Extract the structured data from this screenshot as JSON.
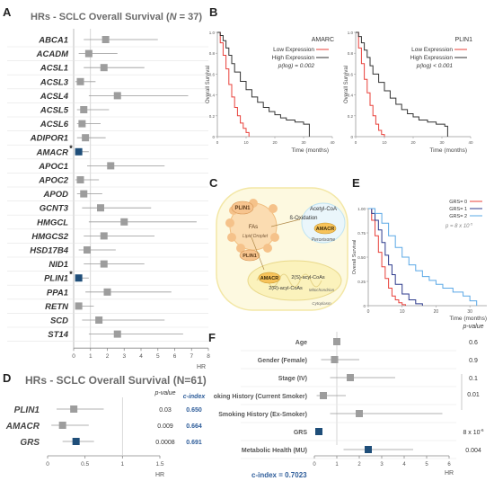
{
  "panels": {
    "A": {
      "letter": "A",
      "title_prefix": "HRs - SCLC Overall Survival (",
      "title_n": "N",
      "title_suffix": " = 37)",
      "genes": [
        "ABCA1",
        "ACADM",
        "ACSL1",
        "ACSL3",
        "ACSL4",
        "ACSL5",
        "ACSL6",
        "ADIPOR1",
        "AMACR",
        "APOC1",
        "APOC2",
        "APOD",
        "GCNT3",
        "HMGCL",
        "HMGCS2",
        "HSD17B4",
        "NID1",
        "PLIN1",
        "PPA1",
        "RETN",
        "SCD",
        "ST14"
      ],
      "significant_marker": "*",
      "axis_ticks": [
        "0",
        "1",
        "2",
        "3",
        "4",
        "5",
        "6",
        "7",
        "8"
      ],
      "xlabel": "HR"
    },
    "B": {
      "letter": "B",
      "ylabel": "Overall Survival",
      "xlabel": "Time (months)",
      "yticks": [
        "0",
        "0.2",
        "0.4",
        "0.6",
        "0.8",
        "1.0"
      ],
      "xticks": [
        "0",
        "10",
        "20",
        "30",
        "40"
      ],
      "plots": [
        {
          "gene": "AMARC",
          "low": "Low Expression",
          "high": "High Expression",
          "p": "p(log) = 0.002"
        },
        {
          "gene": "PLIN1",
          "low": "Low Expression",
          "high": "High Expression",
          "p": "p(log) < 0.001"
        }
      ]
    },
    "C": {
      "letter": "C",
      "labels": {
        "plin1_a": "PLIN1",
        "plin1_b": "PLIN1",
        "fas": "FAs",
        "lipid_droplet": "Lipid Droplet",
        "acetyl": "Acetyl-CoA",
        "beta_ox": "ß-Oxidation",
        "amacr_a": "AMACR",
        "amacr_b": "AMACR",
        "peroxisome": "Peroxisome",
        "s_acyl": "2(S)-acyl-CoAs",
        "r_acyl": "2(R)-acyl-CoAs",
        "mito": "Mitochondrion",
        "cyto": "Cytoplasm"
      }
    },
    "D": {
      "letter": "D",
      "title": "HRs - SCLC Overall Survival (N=61)",
      "pvalue_header": "p-value",
      "cindex_header": "c-index",
      "rows": [
        {
          "label": "PLIN1",
          "p": "0.03",
          "c": "0.650"
        },
        {
          "label": "AMACR",
          "p": "0.009",
          "c": "0.664"
        },
        {
          "label": "GRS",
          "p": "0.0008",
          "c": "0.691"
        }
      ],
      "axis_ticks": [
        "0",
        "0.5",
        "1",
        "1.5"
      ],
      "xlabel": "HR"
    },
    "E": {
      "letter": "E",
      "ylabel": "Overall Survival",
      "xlabel": "Time (months)",
      "legend": [
        "GRS= 0",
        "GRS= 1",
        "GRS= 2"
      ],
      "p": "p = 8 x 10",
      "p_exp": "-5",
      "yticks": [
        "0",
        "0.25",
        "0.50",
        "0.75",
        "1.00"
      ],
      "xticks": [
        "0",
        "10",
        "20",
        "30"
      ]
    },
    "F": {
      "letter": "F",
      "pvalue_header": "p-value",
      "rows": [
        {
          "label": "Age",
          "p": "0.6"
        },
        {
          "label": "Gender (Female)",
          "p": "0.9"
        },
        {
          "label": "Stage (IV)",
          "p": "0.1"
        },
        {
          "label": "Smoking History (Current Smoker)",
          "p": ""
        },
        {
          "label": "Smoking History (Ex-Smoker)",
          "p": ""
        },
        {
          "label": "GRS",
          "p": "8 x 10"
        },
        {
          "label": "Metabolic Health (MU)",
          "p": "0.004"
        }
      ],
      "smoking_p": "0.01",
      "grs_exp": "-6",
      "axis_ticks": [
        "0",
        "1",
        "2",
        "3",
        "4",
        "5",
        "6"
      ],
      "xlabel": "HR",
      "cindex": "c-index = 0.7023"
    }
  },
  "colors": {
    "grey_marker": "#9d9d9d",
    "blue_marker": "#1f4e79",
    "low_expression": "#e8403a",
    "high_expression": "#333333",
    "grs0": "#e8403a",
    "grs1": "#2c3a8c",
    "grs2": "#5aa8e6",
    "cindex_blue": "#2e5d9a"
  },
  "chart_data": [
    {
      "panel": "A",
      "type": "scatter",
      "title": "HRs - SCLC Overall Survival (N = 37)",
      "xlabel": "HR",
      "xlim": [
        0,
        8
      ],
      "categories": [
        "ABCA1",
        "ACADM",
        "ACSL1",
        "ACSL3",
        "ACSL4",
        "ACSL5",
        "ACSL6",
        "ADIPOR1",
        "AMACR",
        "APOC1",
        "APOC2",
        "APOD",
        "GCNT3",
        "HMGCL",
        "HMGCS2",
        "HSD17B4",
        "NID1",
        "PLIN1",
        "PPA1",
        "RETN",
        "SCD",
        "ST14"
      ],
      "hr": [
        1.9,
        0.9,
        1.8,
        0.4,
        2.6,
        0.6,
        0.5,
        0.7,
        0.3,
        2.2,
        0.4,
        0.6,
        1.6,
        3.0,
        1.8,
        0.8,
        1.8,
        0.3,
        2.0,
        0.3,
        1.5,
        2.6
      ],
      "low": [
        0.6,
        0.3,
        0.6,
        0.1,
        0.9,
        0.2,
        0.2,
        0.2,
        0.1,
        0.8,
        0.1,
        0.2,
        0.5,
        0.9,
        0.6,
        0.3,
        0.6,
        0.1,
        0.7,
        0.1,
        0.5,
        0.9
      ],
      "high": [
        5.0,
        2.6,
        4.2,
        1.3,
        6.8,
        2.1,
        1.6,
        1.9,
        0.9,
        5.4,
        1.5,
        1.7,
        4.6,
        7.3,
        4.8,
        2.5,
        4.2,
        0.9,
        5.8,
        1.2,
        5.4,
        6.5
      ],
      "significant": [
        "AMACR",
        "PLIN1"
      ]
    },
    {
      "panel": "B-left",
      "type": "line",
      "title": "AMARC",
      "xlabel": "Time (months)",
      "ylabel": "Overall Survival",
      "xlim": [
        0,
        40
      ],
      "ylim": [
        0,
        1
      ],
      "series": [
        {
          "name": "Low Expression",
          "x": [
            0,
            1,
            2,
            3,
            4,
            5,
            6,
            7,
            8,
            9,
            10,
            11
          ],
          "y": [
            1.0,
            0.9,
            0.78,
            0.65,
            0.5,
            0.38,
            0.28,
            0.2,
            0.13,
            0.08,
            0.04,
            0.0
          ]
        },
        {
          "name": "High Expression",
          "x": [
            0,
            1,
            2,
            3,
            4,
            5,
            6,
            8,
            10,
            12,
            14,
            16,
            18,
            20,
            22,
            24,
            27,
            30,
            32
          ],
          "y": [
            1.0,
            0.97,
            0.92,
            0.85,
            0.78,
            0.7,
            0.62,
            0.53,
            0.45,
            0.38,
            0.33,
            0.28,
            0.24,
            0.21,
            0.18,
            0.16,
            0.14,
            0.12,
            0.0
          ]
        }
      ]
    },
    {
      "panel": "B-right",
      "type": "line",
      "title": "PLIN1",
      "xlabel": "Time (months)",
      "ylabel": "Overall Survival",
      "xlim": [
        0,
        40
      ],
      "ylim": [
        0,
        1
      ],
      "series": [
        {
          "name": "Low Expression",
          "x": [
            0,
            1,
            2,
            3,
            4,
            5,
            6,
            7,
            8,
            9,
            10
          ],
          "y": [
            1.0,
            0.85,
            0.7,
            0.55,
            0.42,
            0.3,
            0.2,
            0.12,
            0.06,
            0.02,
            0.0
          ]
        },
        {
          "name": "High Expression",
          "x": [
            0,
            1,
            2,
            3,
            4,
            5,
            6,
            8,
            10,
            12,
            14,
            16,
            18,
            20,
            22,
            25,
            28,
            31,
            32
          ],
          "y": [
            1.0,
            0.96,
            0.9,
            0.83,
            0.76,
            0.68,
            0.6,
            0.52,
            0.44,
            0.37,
            0.31,
            0.26,
            0.22,
            0.19,
            0.16,
            0.14,
            0.12,
            0.1,
            0.0
          ]
        }
      ]
    },
    {
      "panel": "D",
      "type": "scatter",
      "title": "HRs - SCLC Overall Survival (N=61)",
      "xlabel": "HR",
      "xlim": [
        0,
        1.5
      ],
      "categories": [
        "PLIN1",
        "AMACR",
        "GRS"
      ],
      "hr": [
        0.35,
        0.2,
        0.38
      ],
      "low": [
        0.12,
        0.05,
        0.2
      ],
      "high": [
        0.75,
        0.55,
        0.62
      ],
      "p_value": [
        "0.03",
        "0.009",
        "0.0008"
      ],
      "c_index": [
        0.65,
        0.664,
        0.691
      ]
    },
    {
      "panel": "E",
      "type": "line",
      "xlabel": "Time (months)",
      "ylabel": "Overall Survival",
      "xlim": [
        0,
        35
      ],
      "ylim": [
        0,
        1
      ],
      "series": [
        {
          "name": "GRS= 0",
          "x": [
            0,
            1,
            2,
            3,
            4,
            5,
            6,
            7,
            8,
            9,
            10,
            11
          ],
          "y": [
            1.0,
            0.88,
            0.72,
            0.55,
            0.4,
            0.28,
            0.18,
            0.1,
            0.06,
            0.03,
            0.01,
            0.0
          ]
        },
        {
          "name": "GRS= 1",
          "x": [
            0,
            1,
            2,
            3,
            4,
            5,
            6,
            7,
            8,
            10,
            12,
            14,
            16
          ],
          "y": [
            1.0,
            0.95,
            0.88,
            0.78,
            0.65,
            0.52,
            0.42,
            0.32,
            0.22,
            0.12,
            0.06,
            0.02,
            0.0
          ]
        },
        {
          "name": "GRS= 2",
          "x": [
            0,
            2,
            4,
            6,
            8,
            10,
            12,
            14,
            16,
            18,
            20,
            22,
            25,
            28,
            30,
            32
          ],
          "y": [
            1.0,
            0.95,
            0.85,
            0.72,
            0.6,
            0.5,
            0.42,
            0.36,
            0.3,
            0.26,
            0.22,
            0.18,
            0.14,
            0.1,
            0.05,
            0.0
          ]
        }
      ]
    },
    {
      "panel": "F",
      "type": "scatter",
      "xlabel": "HR",
      "xlim": [
        0,
        6
      ],
      "categories": [
        "Age",
        "Gender (Female)",
        "Stage (IV)",
        "Smoking History (Current Smoker)",
        "Smoking History (Ex-Smoker)",
        "GRS",
        "Metabolic Health (MU)"
      ],
      "hr": [
        1.0,
        0.9,
        1.6,
        0.4,
        2.0,
        0.2,
        2.4
      ],
      "low": [
        0.95,
        0.3,
        0.7,
        0.1,
        0.7,
        0.1,
        1.3
      ],
      "high": [
        1.05,
        2.0,
        3.6,
        1.4,
        5.7,
        0.35,
        4.4
      ],
      "p_value": [
        "0.6",
        "0.9",
        "0.1",
        "0.01",
        "0.01",
        "8 x 10^-6",
        "0.004"
      ],
      "c_index": 0.7023
    }
  ]
}
